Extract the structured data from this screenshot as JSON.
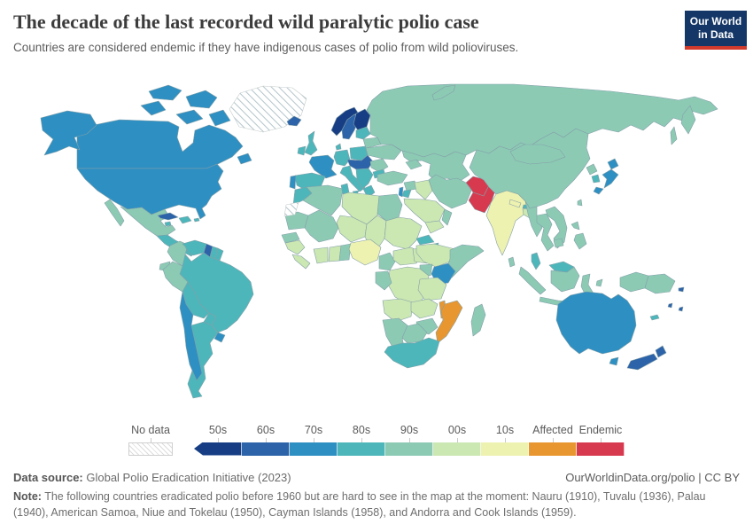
{
  "header": {
    "title": "The decade of the last recorded wild paralytic polio case",
    "subtitle": "Countries are considered endemic if they have indigenous cases of polio from wild polioviruses.",
    "logo": {
      "line1": "Our World",
      "line2": "in Data",
      "bg": "#143767",
      "bar": "#d23a2c"
    }
  },
  "legend": {
    "no_data_label": "No data",
    "bins": [
      {
        "label": "50s",
        "color": "#173e84"
      },
      {
        "label": "60s",
        "color": "#2c63a9"
      },
      {
        "label": "70s",
        "color": "#2e8fc2"
      },
      {
        "label": "80s",
        "color": "#4db6ba"
      },
      {
        "label": "90s",
        "color": "#8ccab4"
      },
      {
        "label": "00s",
        "color": "#cbe7b2"
      },
      {
        "label": "10s",
        "color": "#eef2b0"
      },
      {
        "label": "Affected",
        "color": "#e8962f"
      },
      {
        "label": "Endemic",
        "color": "#d73a4f"
      }
    ]
  },
  "footer": {
    "datasource_label": "Data source:",
    "datasource_text": " Global Polio Eradication Initiative (2023)",
    "link_text": "OurWorldinData.org/polio | CC BY",
    "note_label": "Note:",
    "note_text": " The following countries eradicated polio before 1960 but are hard to see in the map at the moment: Nauru (1910), Tuvalu (1936), Palau (1940), American Samoa, Niue and Tokelau (1950), Cayman Islands (1958), and Andorra and Cook Islands (1959)."
  },
  "chart_data": {
    "type": "choropleth",
    "title": "The decade of the last recorded wild paralytic polio case",
    "legend_bins": [
      "No data",
      "50s",
      "60s",
      "70s",
      "80s",
      "90s",
      "00s",
      "10s",
      "Affected",
      "Endemic"
    ],
    "colors": {
      "50s": "#173e84",
      "60s": "#2c63a9",
      "70s": "#2e8fc2",
      "80s": "#4db6ba",
      "90s": "#8ccab4",
      "00s": "#cbe7b2",
      "10s": "#eef2b0",
      "Affected": "#e8962f",
      "Endemic": "#d73a4f",
      "No data": "hatch"
    },
    "countries": {
      "greenland": "No data",
      "western-sahara": "No data",
      "norway": "50s",
      "finland": "50s",
      "iceland": "60s",
      "sweden": "60s",
      "cuba": "60s",
      "guyana": "60s",
      "central-europe": "60s",
      "new-zealand": "60s",
      "fiji": "60s",
      "vanuatu": "60s",
      "solomon-islands": "60s",
      "canada": "70s",
      "united-states": "70s",
      "france": "70s",
      "portugal": "70s",
      "chile": "70s",
      "uruguay": "70s",
      "japan": "70s",
      "kenya": "70s",
      "israel": "70s",
      "australia": "70s",
      "united-kingdom": "80s",
      "ireland": "80s",
      "denmark": "80s",
      "germany": "80s",
      "poland": "80s",
      "spain": "80s",
      "italy": "80s",
      "balkans": "80s",
      "greece": "80s",
      "bulgaria": "80s",
      "baltic-states": "80s",
      "jamaica": "80s",
      "hispaniola": "80s",
      "puerto-rico": "80s",
      "central-america": "80s",
      "venezuela": "80s",
      "suriname": "80s",
      "french-guiana": "80s",
      "brazil": "80s",
      "bolivia": "80s",
      "paraguay": "80s",
      "argentina": "80s",
      "morocco": "80s",
      "tunisia": "80s",
      "eritrea": "80s",
      "djibouti": "80s",
      "jordan": "80s",
      "malaysia": "80s",
      "south-africa": "80s",
      "new-caledonia": "80s",
      "south-korea": "80s",
      "bhutan": "80s",
      "russia": "90s",
      "kazakhstan": "90s",
      "caucasus": "90s",
      "ukraine": "90s",
      "belarus": "90s",
      "romania": "90s",
      "turkey": "90s",
      "syria": "90s",
      "iran": "90s",
      "oman": "90s",
      "mexico": "90s",
      "colombia": "90s",
      "ecuador": "90s",
      "peru": "90s",
      "algeria": "90s",
      "egypt": "90s",
      "mauritania": "90s",
      "mali": "90s",
      "senegal": "90s",
      "togo-benin": "90s",
      "cameroon": "90s",
      "gabon-congo": "90s",
      "uganda": "90s",
      "somalia": "90s",
      "zimbabwe": "90s",
      "botswana": "90s",
      "namibia": "90s",
      "madagascar": "90s",
      "china": "90s",
      "mongolia": "90s",
      "north-korea": "90s",
      "taiwan": "90s",
      "myanmar": "90s",
      "thailand": "90s",
      "vietnam": "90s",
      "cambodia": "90s",
      "indonesia": "90s",
      "papua-new-guinea": "90s",
      "philippines": "90s",
      "sri-lanka": "90s",
      "libya": "00s",
      "niger": "00s",
      "chad": "00s",
      "sudan": "00s",
      "guinea": "00s",
      "sierra-leone-liberia": "00s",
      "cote-divoire": "00s",
      "ghana": "00s",
      "central-african-republic": "00s",
      "south-sudan": "00s",
      "ethiopia": "00s",
      "drc": "00s",
      "tanzania": "00s",
      "angola": "00s",
      "zambia": "00s",
      "iraq": "00s",
      "saudi-arabia": "00s",
      "yemen": "00s",
      "bangladesh": "00s",
      "nigeria": "10s",
      "india": "10s",
      "nepal": "10s",
      "mozambique": "Affected",
      "malawi": "Affected",
      "afghanistan": "Endemic",
      "pakistan": "Endemic"
    }
  }
}
